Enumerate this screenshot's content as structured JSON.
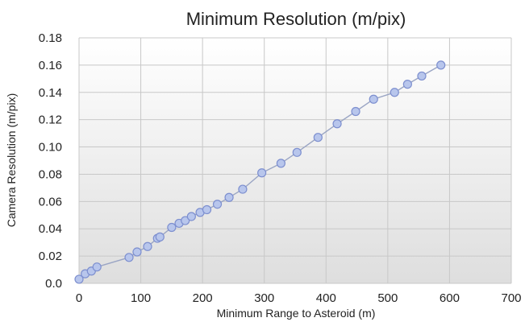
{
  "chart_data": {
    "type": "scatter",
    "title": "Minimum Resolution (m/pix)",
    "xlabel": "Minimum Range to Asteroid (m)",
    "ylabel": "Camera Resolution (m/pix)",
    "xlim": [
      0,
      700
    ],
    "ylim": [
      0,
      0.18
    ],
    "x_ticks": [
      {
        "value": 0,
        "label": "0"
      },
      {
        "value": 100,
        "label": "100"
      },
      {
        "value": 200,
        "label": "200"
      },
      {
        "value": 300,
        "label": "300"
      },
      {
        "value": 400,
        "label": "400"
      },
      {
        "value": 500,
        "label": "500"
      },
      {
        "value": 600,
        "label": "600"
      },
      {
        "value": 700,
        "label": "700"
      }
    ],
    "y_ticks": [
      {
        "value": 0,
        "label": "0.0"
      },
      {
        "value": 0.02,
        "label": "0.02"
      },
      {
        "value": 0.04,
        "label": "0.04"
      },
      {
        "value": 0.06,
        "label": "0.06"
      },
      {
        "value": 0.08,
        "label": "0.08"
      },
      {
        "value": 0.1,
        "label": "0.10"
      },
      {
        "value": 0.12,
        "label": "0.12"
      },
      {
        "value": 0.14,
        "label": "0.14"
      },
      {
        "value": 0.16,
        "label": "0.16"
      },
      {
        "value": 0.18,
        "label": "0.18"
      }
    ],
    "grid": true,
    "connected": true,
    "marker": "circle",
    "colors": {
      "marker_fill": "#b8c6ec",
      "marker_stroke": "#7d8fcf",
      "line": "#9aa5c4",
      "grid": "#c8c8c8",
      "plot_bg_top": "#ffffff",
      "plot_bg_bottom": "#dedede",
      "text": "#222222"
    },
    "series": [
      {
        "x": [
          0,
          10,
          20,
          29,
          81,
          94,
          111,
          127,
          131,
          150,
          162,
          172,
          182,
          196,
          207,
          224,
          243,
          265,
          296,
          327,
          353,
          387,
          418,
          448,
          477,
          511,
          532,
          555,
          586
        ],
        "y": [
          0.003,
          0.007,
          0.009,
          0.012,
          0.019,
          0.023,
          0.027,
          0.033,
          0.034,
          0.041,
          0.044,
          0.046,
          0.049,
          0.052,
          0.054,
          0.058,
          0.063,
          0.069,
          0.081,
          0.088,
          0.096,
          0.107,
          0.117,
          0.126,
          0.135,
          0.14,
          0.146,
          0.152,
          0.16
        ]
      }
    ]
  }
}
